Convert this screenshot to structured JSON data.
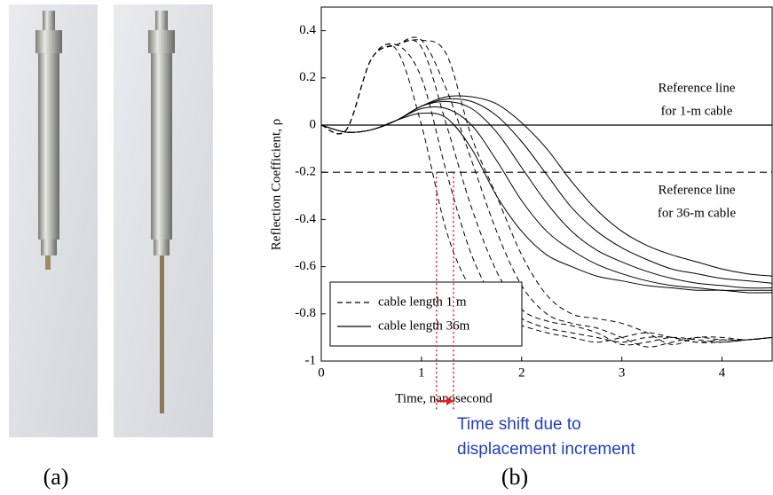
{
  "chart_data": {
    "type": "line",
    "y_label": "Reflection Coefficient, ρ",
    "x_label": "Time, nanosecond",
    "panel_labels": [
      "(a)",
      "(b)"
    ],
    "xlim": [
      0,
      4.5
    ],
    "xticks": [
      0,
      1,
      2,
      3,
      4
    ],
    "ylim": [
      -1,
      0.5
    ],
    "yticks": [
      0.4,
      0.2,
      0,
      -0.2,
      -0.4,
      -0.6,
      -0.8,
      -1
    ],
    "x": [
      0,
      0.25,
      0.5,
      0.75,
      1,
      1.25,
      1.5,
      1.75,
      2,
      2.25,
      2.5,
      2.75,
      3,
      3.25,
      3.5,
      3.75,
      4,
      4.25,
      4.5
    ],
    "series": [
      {
        "name": "cable length 1 m",
        "dash": true,
        "color": "#000000",
        "curves": [
          [
            0,
            -0.02,
            0.28,
            0.32,
            0.0,
            -0.45,
            -0.7,
            -0.82,
            -0.85,
            -0.88,
            -0.9,
            -0.92,
            -0.9,
            -0.88,
            -0.9,
            -0.92,
            -0.92,
            -0.91,
            -0.9
          ],
          [
            0,
            -0.02,
            0.28,
            0.34,
            0.2,
            -0.2,
            -0.55,
            -0.75,
            -0.82,
            -0.86,
            -0.88,
            -0.9,
            -0.92,
            -0.9,
            -0.9,
            -0.92,
            -0.91,
            -0.91,
            -0.9
          ],
          [
            0,
            -0.02,
            0.28,
            0.34,
            0.33,
            0.0,
            -0.35,
            -0.62,
            -0.78,
            -0.83,
            -0.85,
            -0.88,
            -0.93,
            -0.92,
            -0.9,
            -0.91,
            -0.92,
            -0.91,
            -0.9
          ],
          [
            0,
            -0.02,
            0.28,
            0.34,
            0.36,
            0.15,
            -0.15,
            -0.45,
            -0.68,
            -0.8,
            -0.84,
            -0.86,
            -0.9,
            -0.94,
            -0.92,
            -0.9,
            -0.91,
            -0.91,
            -0.9
          ],
          [
            0,
            -0.02,
            0.28,
            0.34,
            0.36,
            0.3,
            -0.05,
            -0.3,
            -0.55,
            -0.72,
            -0.8,
            -0.82,
            -0.84,
            -0.88,
            -0.93,
            -0.9,
            -0.9,
            -0.91,
            -0.9
          ]
        ]
      },
      {
        "name": "cable length 36m",
        "dash": false,
        "color": "#000000",
        "curves": [
          [
            0,
            -0.03,
            -0.02,
            0.02,
            0.05,
            0.03,
            -0.1,
            -0.3,
            -0.45,
            -0.55,
            -0.6,
            -0.64,
            -0.66,
            -0.68,
            -0.69,
            -0.7,
            -0.7,
            -0.71,
            -0.71
          ],
          [
            0,
            -0.03,
            -0.02,
            0.02,
            0.07,
            0.07,
            0.0,
            -0.15,
            -0.32,
            -0.45,
            -0.53,
            -0.59,
            -0.63,
            -0.66,
            -0.68,
            -0.69,
            -0.7,
            -0.7,
            -0.7
          ],
          [
            0,
            -0.03,
            -0.02,
            0.02,
            0.08,
            0.1,
            0.07,
            -0.03,
            -0.18,
            -0.33,
            -0.45,
            -0.53,
            -0.58,
            -0.62,
            -0.65,
            -0.67,
            -0.68,
            -0.69,
            -0.69
          ],
          [
            0,
            -0.03,
            -0.02,
            0.02,
            0.08,
            0.11,
            0.1,
            0.04,
            -0.07,
            -0.21,
            -0.35,
            -0.45,
            -0.52,
            -0.57,
            -0.61,
            -0.63,
            -0.65,
            -0.66,
            -0.67
          ],
          [
            0,
            -0.03,
            -0.02,
            0.02,
            0.08,
            0.12,
            0.12,
            0.09,
            0.01,
            -0.1,
            -0.24,
            -0.36,
            -0.45,
            -0.51,
            -0.55,
            -0.58,
            -0.61,
            -0.63,
            -0.64
          ]
        ]
      }
    ],
    "reference_lines": [
      {
        "value": 0,
        "dash": false,
        "label": [
          "Reference line",
          "for 1-m cable"
        ]
      },
      {
        "value": -0.2,
        "dash": true,
        "label": [
          "Reference line",
          "for 36-m cable"
        ]
      }
    ],
    "shift_markers": {
      "x": [
        1.15,
        1.32
      ],
      "color": "#e02020",
      "label": [
        "Time shift due to",
        "displacement increment"
      ]
    }
  }
}
